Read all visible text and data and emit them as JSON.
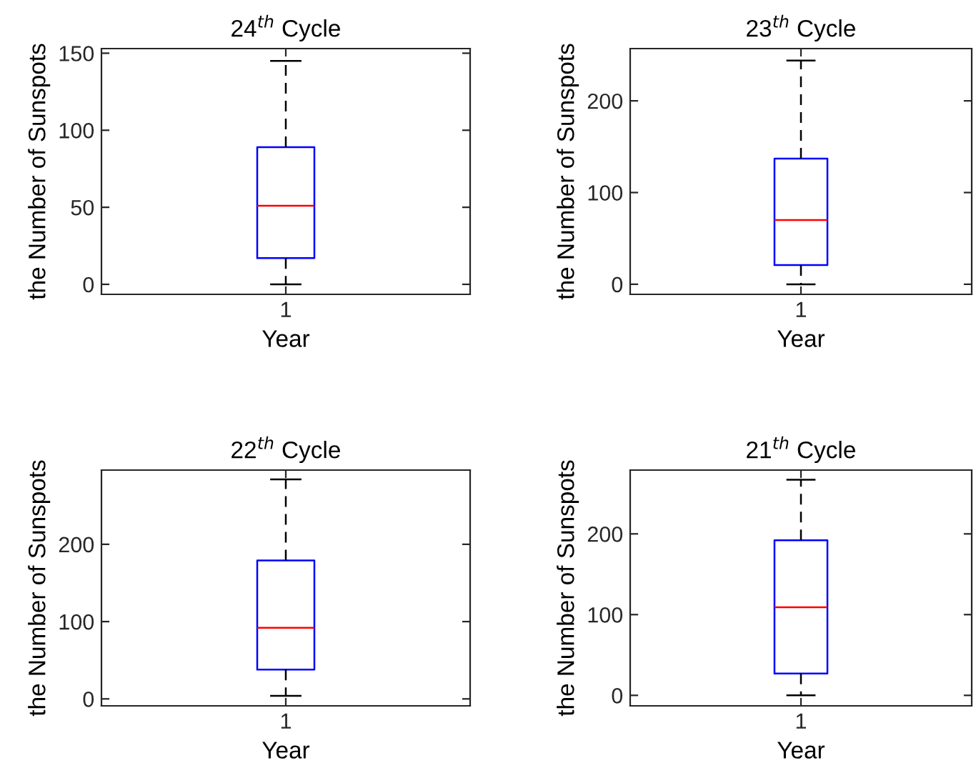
{
  "chart_data": [
    {
      "type": "box",
      "title": "24$^{th}$ Cycle",
      "xlabel": "Year",
      "ylabel": "the Number of Sunspots",
      "categories": [
        "1"
      ],
      "ylim": [
        -6.5,
        153
      ],
      "yticks": [
        0,
        50,
        100,
        150
      ],
      "series": [
        {
          "color": "#0000ff",
          "boxes": [
            {
              "low": 0,
              "q1": 17,
              "median": 51,
              "q3": 89,
              "high": 145
            }
          ]
        }
      ]
    },
    {
      "type": "box",
      "title": "23$^{th}$ Cycle",
      "xlabel": "Year",
      "ylabel": "the Number of Sunspots",
      "categories": [
        "1"
      ],
      "ylim": [
        -11,
        257
      ],
      "yticks": [
        0,
        100,
        200
      ],
      "series": [
        {
          "color": "#0000ff",
          "boxes": [
            {
              "low": 0,
              "q1": 21,
              "median": 70,
              "q3": 137,
              "high": 244
            }
          ]
        }
      ]
    },
    {
      "type": "box",
      "title": "22$^{th}$ Cycle",
      "xlabel": "Year",
      "ylabel": "the Number of Sunspots",
      "categories": [
        "1"
      ],
      "ylim": [
        -9,
        296
      ],
      "yticks": [
        0,
        100,
        200
      ],
      "series": [
        {
          "color": "#0000ff",
          "boxes": [
            {
              "low": 4,
              "q1": 38,
              "median": 92,
              "q3": 179,
              "high": 284
            }
          ]
        }
      ]
    },
    {
      "type": "box",
      "title": "21$^{th}$ Cycle",
      "xlabel": "Year",
      "ylabel": "the Number of Sunspots",
      "categories": [
        "1"
      ],
      "ylim": [
        -13,
        279
      ],
      "yticks": [
        0,
        100,
        200
      ],
      "series": [
        {
          "color": "#0000ff",
          "boxes": [
            {
              "low": 0,
              "q1": 27,
              "median": 109,
              "q3": 192,
              "high": 267
            }
          ]
        }
      ]
    }
  ]
}
